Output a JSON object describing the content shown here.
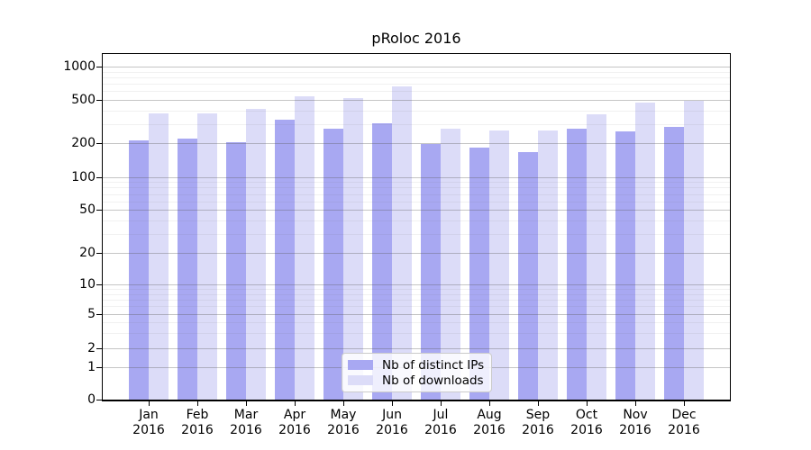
{
  "chart_data": {
    "type": "bar",
    "title": "pRoloc 2016",
    "categories": [
      "Jan",
      "Feb",
      "Mar",
      "Apr",
      "May",
      "Jun",
      "Jul",
      "Aug",
      "Sep",
      "Oct",
      "Nov",
      "Dec"
    ],
    "x_tick_second_line": "2016",
    "series": [
      {
        "name": "Nb of distinct IPs",
        "color": "#a8a8f2",
        "values": [
          212,
          218,
          204,
          329,
          270,
          306,
          195,
          182,
          165,
          272,
          258,
          284
        ]
      },
      {
        "name": "Nb of downloads",
        "color": "#dcdcf8",
        "values": [
          375,
          377,
          411,
          539,
          522,
          666,
          270,
          262,
          260,
          370,
          472,
          493
        ]
      }
    ],
    "yaxis": {
      "scale": "log-like",
      "major_ticks": [
        0,
        1,
        2,
        5,
        10,
        20,
        50,
        100,
        200,
        500,
        1000
      ],
      "minor_ticks": [
        3,
        4,
        6,
        7,
        8,
        9,
        30,
        40,
        60,
        70,
        80,
        90,
        300,
        400,
        600,
        700,
        800,
        900
      ],
      "range": [
        0,
        1000
      ]
    },
    "xlabel": "",
    "ylabel": "",
    "legend_position": "lower center (inside plot)",
    "grid": {
      "horizontal": true,
      "drawn_over_bars": true
    },
    "colors": {
      "grid_major": "#c6c6c6",
      "grid_minor": "#ececec",
      "spine": "#000000",
      "background": "#ffffff"
    }
  }
}
